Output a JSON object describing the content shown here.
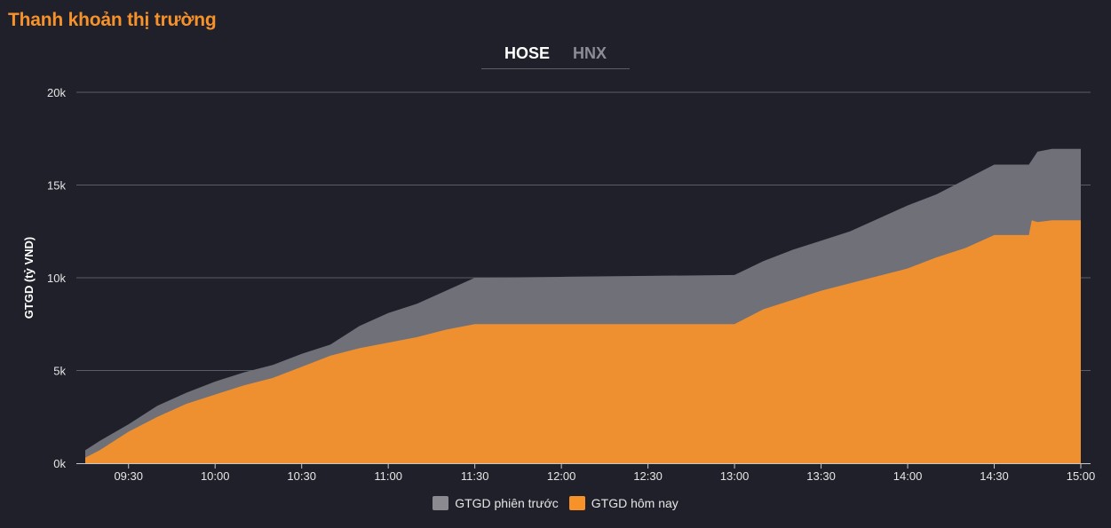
{
  "header": {
    "title": "Thanh khoản thị trường"
  },
  "tabs": [
    {
      "label": "HOSE",
      "active": true
    },
    {
      "label": "HNX",
      "active": false
    }
  ],
  "colors": {
    "previous": "#707078",
    "today": "#f7922a",
    "grid": "#5a5c66",
    "background": "#1f202a"
  },
  "chart_data": {
    "type": "area",
    "ylabel": "GTGD (tỷ VND)",
    "ylim": [
      0,
      20000
    ],
    "yticks": [
      0,
      5000,
      10000,
      15000,
      20000
    ],
    "ytick_labels": [
      "0k",
      "5k",
      "10k",
      "15k",
      "20k"
    ],
    "xlim": [
      "09:15",
      "15:00"
    ],
    "xticks": [
      "09:30",
      "10:00",
      "10:30",
      "11:00",
      "11:30",
      "12:00",
      "12:30",
      "13:00",
      "13:30",
      "14:00",
      "14:30",
      "15:00"
    ],
    "grid": true,
    "legend_position": "bottom",
    "series": [
      {
        "name": "GTGD phiên trước",
        "color": "#707078",
        "points": [
          [
            "09:15",
            700
          ],
          [
            "09:20",
            1200
          ],
          [
            "09:30",
            2100
          ],
          [
            "09:40",
            3100
          ],
          [
            "09:50",
            3800
          ],
          [
            "10:00",
            4400
          ],
          [
            "10:10",
            4900
          ],
          [
            "10:20",
            5300
          ],
          [
            "10:30",
            5900
          ],
          [
            "10:40",
            6400
          ],
          [
            "10:50",
            7400
          ],
          [
            "11:00",
            8100
          ],
          [
            "11:10",
            8600
          ],
          [
            "11:20",
            9300
          ],
          [
            "11:30",
            10000
          ],
          [
            "12:00",
            10050
          ],
          [
            "12:30",
            10100
          ],
          [
            "13:00",
            10150
          ],
          [
            "13:10",
            10900
          ],
          [
            "13:20",
            11500
          ],
          [
            "13:30",
            12000
          ],
          [
            "13:40",
            12500
          ],
          [
            "13:50",
            13200
          ],
          [
            "14:00",
            13900
          ],
          [
            "14:10",
            14500
          ],
          [
            "14:20",
            15300
          ],
          [
            "14:25",
            15700
          ],
          [
            "14:30",
            16100
          ],
          [
            "14:42",
            16100
          ],
          [
            "14:45",
            16800
          ],
          [
            "14:50",
            16950
          ],
          [
            "15:00",
            16950
          ]
        ]
      },
      {
        "name": "GTGD hôm nay",
        "color": "#f7922a",
        "points": [
          [
            "09:15",
            300
          ],
          [
            "09:20",
            700
          ],
          [
            "09:30",
            1700
          ],
          [
            "09:40",
            2500
          ],
          [
            "09:50",
            3200
          ],
          [
            "10:00",
            3700
          ],
          [
            "10:10",
            4200
          ],
          [
            "10:20",
            4600
          ],
          [
            "10:30",
            5200
          ],
          [
            "10:40",
            5800
          ],
          [
            "10:50",
            6200
          ],
          [
            "11:00",
            6500
          ],
          [
            "11:10",
            6800
          ],
          [
            "11:20",
            7200
          ],
          [
            "11:30",
            7500
          ],
          [
            "12:00",
            7500
          ],
          [
            "12:30",
            7500
          ],
          [
            "13:00",
            7500
          ],
          [
            "13:10",
            8300
          ],
          [
            "13:20",
            8800
          ],
          [
            "13:30",
            9300
          ],
          [
            "13:40",
            9700
          ],
          [
            "13:50",
            10100
          ],
          [
            "14:00",
            10500
          ],
          [
            "14:10",
            11100
          ],
          [
            "14:20",
            11600
          ],
          [
            "14:30",
            12300
          ],
          [
            "14:42",
            12300
          ],
          [
            "14:43",
            13100
          ],
          [
            "14:45",
            13000
          ],
          [
            "14:50",
            13100
          ],
          [
            "15:00",
            13100
          ]
        ]
      }
    ]
  }
}
